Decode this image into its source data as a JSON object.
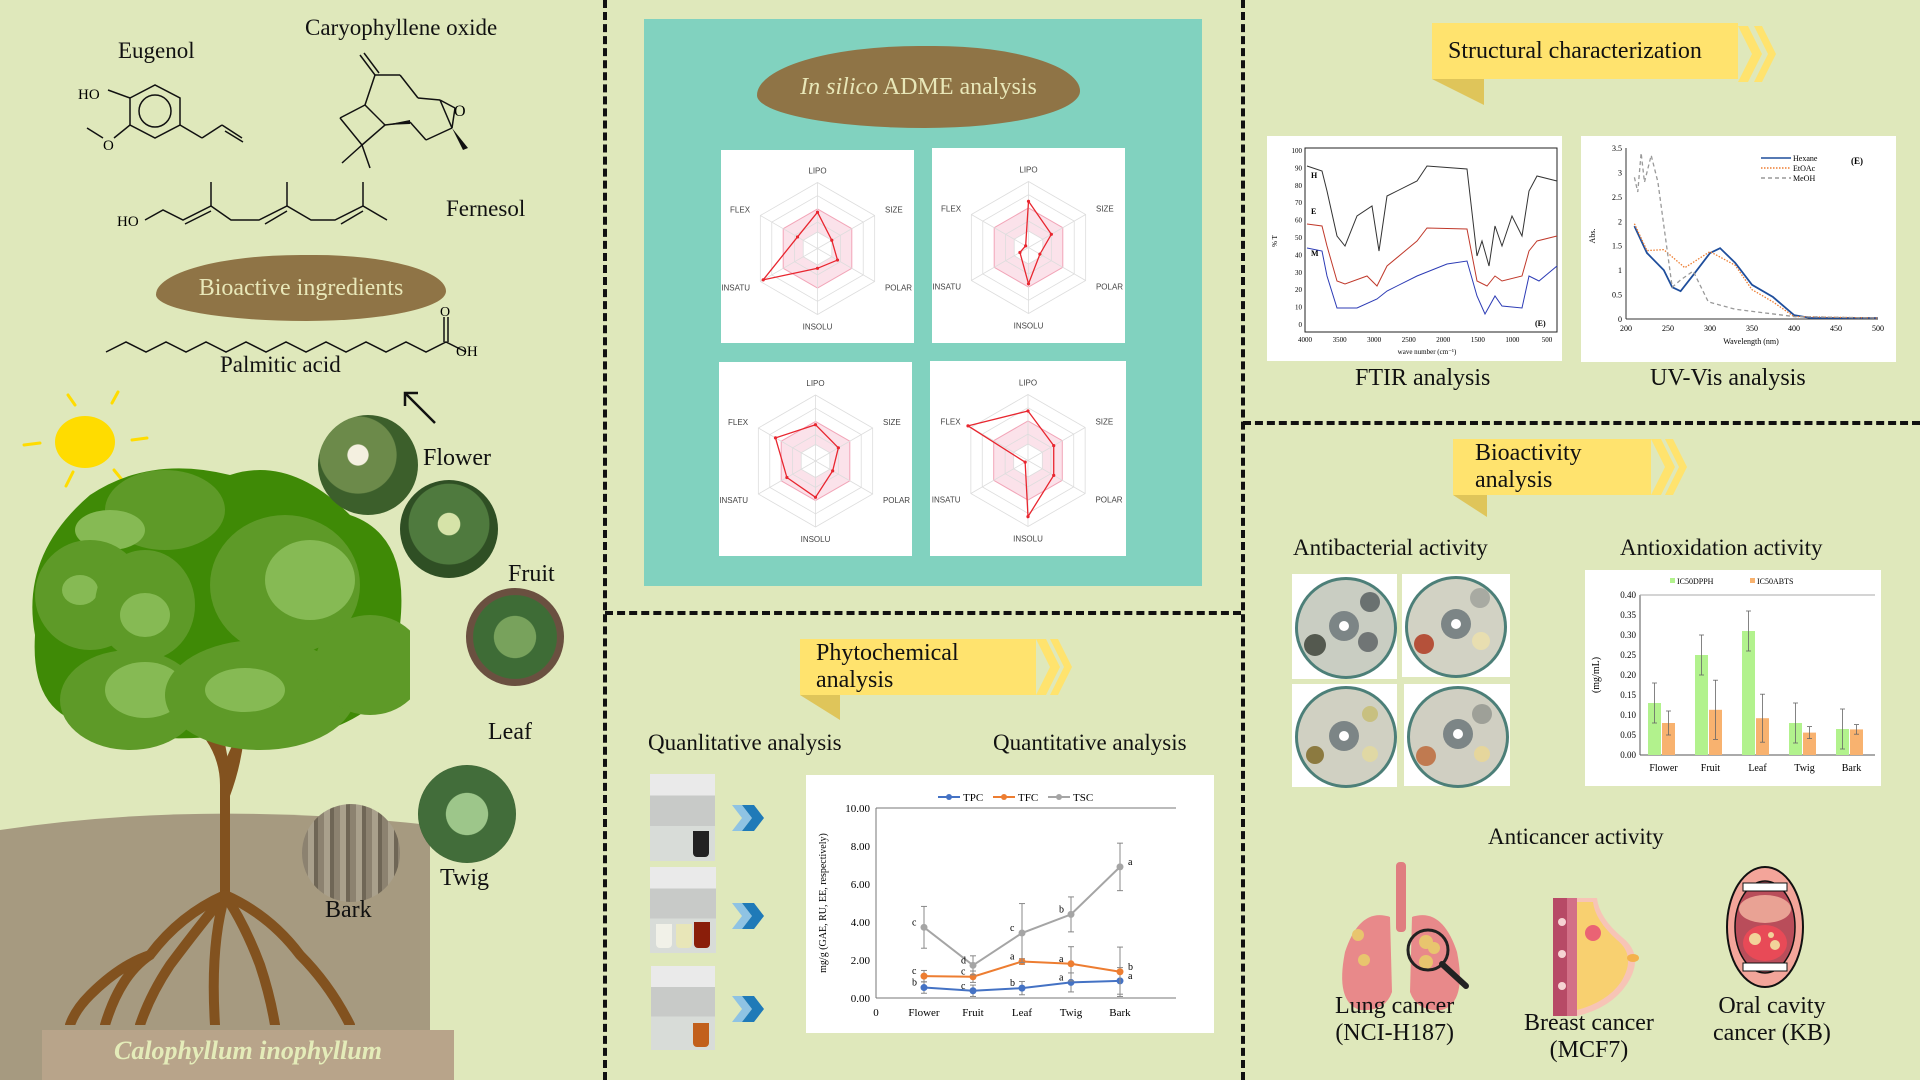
{
  "left": {
    "compounds": [
      {
        "name": "Eugenol"
      },
      {
        "name": "Caryophyllene oxide"
      },
      {
        "name": "Fernesol"
      },
      {
        "name": "Palmitic acid"
      }
    ],
    "atoms": {
      "ho": "HO",
      "o": "O",
      "oh": "OH"
    },
    "bioactive_label": "Bioactive ingredients",
    "plant_parts": [
      "Flower",
      "Fruit",
      "Leaf",
      "Twig",
      "Bark"
    ],
    "species": "Calophyllum inophyllum"
  },
  "adme": {
    "title_italic": "In silico",
    "title_rest": " ADME analysis",
    "axes": [
      "LIPO",
      "SIZE",
      "POLAR",
      "INSOLU",
      "INSATU",
      "FLEX"
    ],
    "radars": [
      {
        "values": [
          0.55,
          0.25,
          0.35,
          0.3,
          0.95,
          0.35
        ]
      },
      {
        "values": [
          0.7,
          0.4,
          0.2,
          0.55,
          0.15,
          0.05
        ]
      },
      {
        "values": [
          0.55,
          0.4,
          0.3,
          0.55,
          0.5,
          0.7
        ]
      },
      {
        "values": [
          0.75,
          0.45,
          0.45,
          0.85,
          0.05,
          1.05
        ]
      }
    ],
    "colors": {
      "panel_bg": "#81d2bf",
      "line": "#e8262f",
      "optimal_fill": "#fbe2ea"
    }
  },
  "phytochemical": {
    "banner": "Phytochemical analysis",
    "qualitative_label": "Quanlitative analysis",
    "quantitative_label": "Quantitative analysis"
  },
  "structural": {
    "banner": "Structural characterization",
    "ftir_caption": "FTIR analysis",
    "uvvis_caption": "UV-Vis analysis"
  },
  "bioactivity": {
    "banner": "Bioactivity analysis",
    "antibacterial_label": "Antibacterial activity",
    "antioxidation_label": "Antioxidation activity",
    "anticancer_label": "Anticancer activity",
    "cancers": [
      {
        "line1": "Lung cancer",
        "line2": "(NCI-H187)"
      },
      {
        "line1": "Breast cancer",
        "line2": "(MCF7)"
      },
      {
        "line1": "Oral cavity",
        "line2": "cancer (KB)"
      }
    ]
  },
  "chart_data": [
    {
      "id": "quantitative",
      "type": "line",
      "title": "",
      "categories": [
        "Flower",
        "Fruit",
        "Leaf",
        "Twig",
        "Bark"
      ],
      "x_origin_label": "0",
      "series": [
        {
          "name": "TPC",
          "color": "#4472c4",
          "values": [
            0.55,
            0.38,
            0.52,
            0.82,
            0.9
          ],
          "errors": [
            0.3,
            0.3,
            0.35,
            0.5,
            0.7
          ],
          "letters": [
            "b",
            "c",
            "b",
            "a",
            "a"
          ]
        },
        {
          "name": "TFC",
          "color": "#ed7d31",
          "values": [
            1.15,
            1.12,
            1.92,
            1.8,
            1.38
          ],
          "errors": [
            0.3,
            0.3,
            0.15,
            0.9,
            1.3
          ],
          "letters": [
            "c",
            "c",
            "a",
            "a",
            "b"
          ]
        },
        {
          "name": "TSC",
          "color": "#a5a5a5",
          "values": [
            3.72,
            1.72,
            3.42,
            4.4,
            6.9
          ],
          "errors": [
            1.1,
            0.5,
            1.55,
            0.92,
            1.25
          ],
          "letters": [
            "c",
            "d",
            "c",
            "b",
            "a"
          ]
        }
      ],
      "ylabel": "mg/g (GAE, RU, EE, respectively)",
      "yticks": [
        "0.00",
        "2.00",
        "4.00",
        "6.00",
        "8.00",
        "10.00"
      ],
      "ylim": [
        0,
        10
      ]
    },
    {
      "id": "antioxidation",
      "type": "bar",
      "categories": [
        "Flower",
        "Fruit",
        "Leaf",
        "Twig",
        "Bark"
      ],
      "series": [
        {
          "name": "IC50DPPH",
          "color": "#b2f28d",
          "values": [
            0.13,
            0.25,
            0.31,
            0.08,
            0.065
          ],
          "errors": [
            0.05,
            0.05,
            0.05,
            0.05,
            0.05
          ]
        },
        {
          "name": "IC50ABTS",
          "color": "#f8b26f",
          "values": [
            0.08,
            0.113,
            0.092,
            0.056,
            0.064
          ],
          "errors": [
            0.03,
            0.074,
            0.06,
            0.015,
            0.012
          ]
        }
      ],
      "ylabel": "(mg/mL)",
      "yticks": [
        "0.00",
        "0.05",
        "0.10",
        "0.15",
        "0.20",
        "0.25",
        "0.30",
        "0.35",
        "0.40"
      ],
      "ylim": [
        0,
        0.4
      ]
    },
    {
      "id": "ftir",
      "type": "line",
      "series": [
        {
          "name": "H",
          "color": "#333333"
        },
        {
          "name": "E",
          "color": "#c0392b"
        },
        {
          "name": "M",
          "color": "#2c3bb5"
        }
      ],
      "xlabel": "wave number (cm⁻¹)",
      "ylabel": "% T",
      "xticks": [
        "4000",
        "3500",
        "3000",
        "2500",
        "2000",
        "1500",
        "1000",
        "500"
      ],
      "yticks": [
        "0",
        "10",
        "20",
        "30",
        "40",
        "50",
        "60",
        "70",
        "80",
        "90",
        "100"
      ],
      "annotation": "(E)"
    },
    {
      "id": "uvvis",
      "type": "line",
      "series": [
        {
          "name": "Hexane",
          "color": "#1f4e9c",
          "style": "solid"
        },
        {
          "name": "EtOAc",
          "color": "#ed7d31",
          "style": "dotted"
        },
        {
          "name": "MeOH",
          "color": "#999999",
          "style": "dashed"
        }
      ],
      "xlabel": "Wavelength (nm)",
      "ylabel": "Abs.",
      "xticks": [
        "200",
        "250",
        "300",
        "350",
        "400",
        "450",
        "500"
      ],
      "yticks": [
        "0",
        "0.5",
        "1",
        "1.5",
        "2",
        "2.5",
        "3",
        "3.5"
      ],
      "annotation": "(E)"
    }
  ]
}
